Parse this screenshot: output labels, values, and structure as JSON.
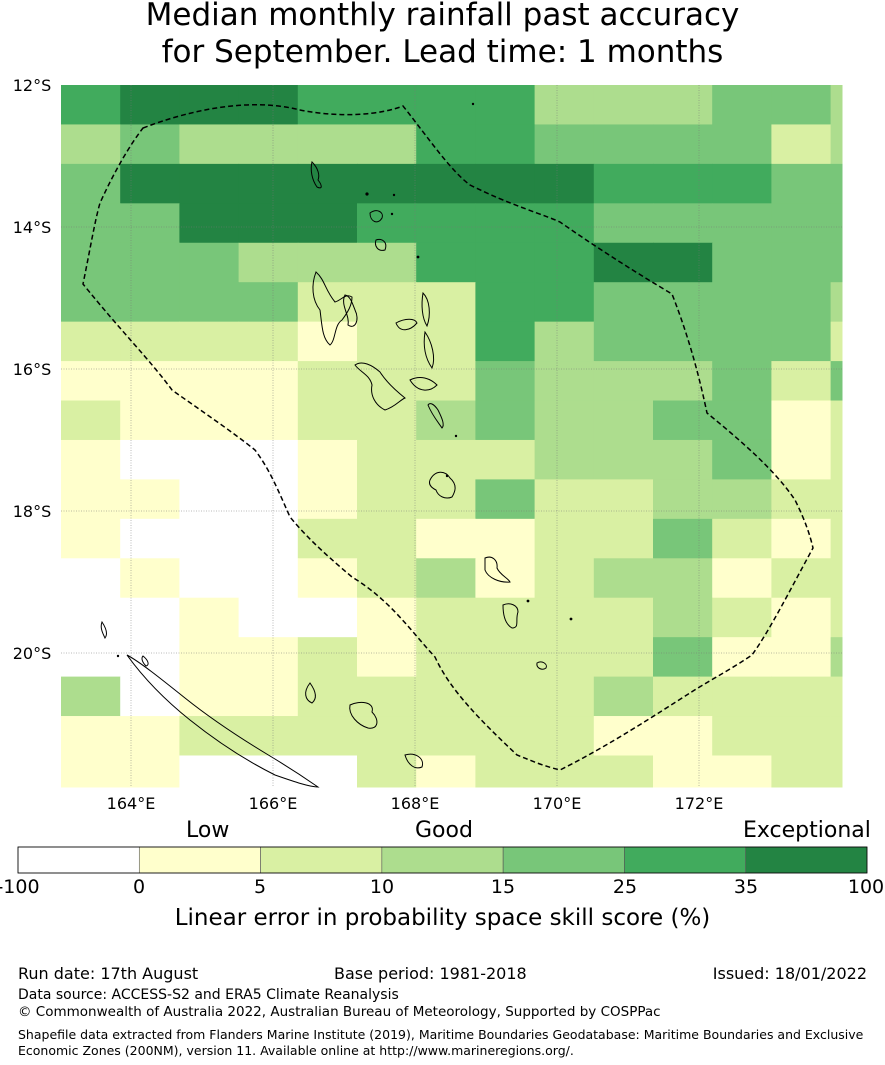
{
  "title": {
    "line1": "Median monthly rainfall past accuracy",
    "line2": "for September. Lead time: 1 months"
  },
  "map": {
    "lat_labels": [
      "12°S",
      "14°S",
      "16°S",
      "18°S",
      "20°S"
    ],
    "lon_labels": [
      "164°E",
      "166°E",
      "168°E",
      "170°E",
      "172°E"
    ],
    "grid_levels": [
      "56665555333443",
      "34333355444423",
      "46666666655544",
      "44666555544444",
      "44433355566444",
      "44442225544443",
      "22221225344442",
      "11112224333424",
      "21112234334412",
      "10001222333412",
      "11001224223322",
      "10002211224212",
      "01001231233122",
      "00100122223212",
      "00112122224113",
      "30112222232222",
      "11222222211222",
      "11000212221122",
      "12112212221222",
      "22222222212222"
    ]
  },
  "colorbar": {
    "category_labels": [
      "Low",
      "Good",
      "Exceptional"
    ],
    "ticks": [
      "-100",
      "0",
      "5",
      "10",
      "15",
      "25",
      "35",
      "100"
    ],
    "colors": [
      "#ffffff",
      "#ffffcc",
      "#d9f0a3",
      "#addd8e",
      "#78c679",
      "#41ab5d",
      "#238443"
    ],
    "title": "Linear error in probability space skill score (%)"
  },
  "footer": {
    "run_date": "Run date: 17th August",
    "base_period": "Base period: 1981-2018",
    "issued": "Issued: 18/01/2022",
    "data_source": "Data source: ACCESS-S2 and ERA5 Climate Reanalysis",
    "copyright": "© Commonwealth of Australia 2022, Australian Bureau of Meteorology, Supported by COSPPac",
    "shapefile_line1": "Shapefile data extracted from Flanders Marine Institute (2019), Maritime Boundaries Geodatabase: Maritime Boundaries and Exclusive",
    "shapefile_line2": "Economic Zones (200NM), version 11. Available online at http://www.marineregions.org/."
  }
}
